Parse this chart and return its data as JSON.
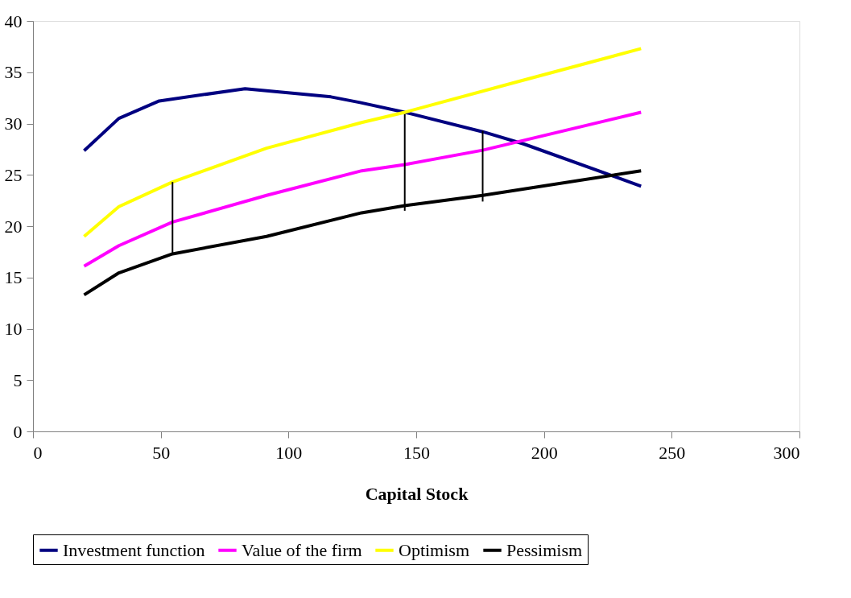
{
  "chart_data": {
    "type": "line",
    "xlabel": "Capital Stock",
    "xlim": [
      0,
      300
    ],
    "xticks": [
      0,
      50,
      100,
      150,
      200,
      250,
      300
    ],
    "ylim": [
      0,
      40
    ],
    "yticks": [
      0,
      5,
      10,
      15,
      20,
      25,
      30,
      35,
      40
    ],
    "grid": false,
    "legend": "bottom",
    "marker": "none",
    "line_style": "solid",
    "series": [
      {
        "name": "Investment function",
        "color": "#000080",
        "x": [
          20,
          33.6,
          49.4,
          83,
          116.6,
          128,
          145.5,
          176,
          192.2,
          238
        ],
        "values": [
          27.35,
          30.5,
          32.2,
          33.4,
          32.6,
          32.05,
          31.1,
          29.2,
          28.0,
          23.9
        ]
      },
      {
        "name": "Value of the firm",
        "color": "#ff00ff",
        "x": [
          20,
          33.6,
          54.6,
          91.4,
          128.7,
          145.5,
          176,
          238
        ],
        "values": [
          16.1,
          18.1,
          20.4,
          23.0,
          25.4,
          26.0,
          27.4,
          31.1
        ]
      },
      {
        "name": "Optimism",
        "color": "#ffff00",
        "x": [
          20,
          33.6,
          54.6,
          91.4,
          128.6,
          145.5,
          190,
          238
        ],
        "values": [
          19.0,
          21.9,
          24.3,
          27.6,
          30.1,
          31.1,
          34.1,
          37.3
        ]
      },
      {
        "name": "Pessimism",
        "color": "#000000",
        "x": [
          20,
          33.6,
          54.6,
          91.4,
          128.6,
          145.5,
          176,
          238
        ],
        "values": [
          13.3,
          15.45,
          17.3,
          19.0,
          21.3,
          22.0,
          23.0,
          25.4
        ]
      },
      {
        "color": "#000000",
        "x": [
          54.6,
          54.6
        ],
        "values": [
          17.3,
          24.3
        ]
      },
      {
        "color": "#000000",
        "x": [
          145.5,
          145.5
        ],
        "values": [
          21.5,
          30.9
        ]
      },
      {
        "color": "#000000",
        "x": [
          176,
          176
        ],
        "values": [
          22.4,
          29.3
        ]
      }
    ]
  }
}
